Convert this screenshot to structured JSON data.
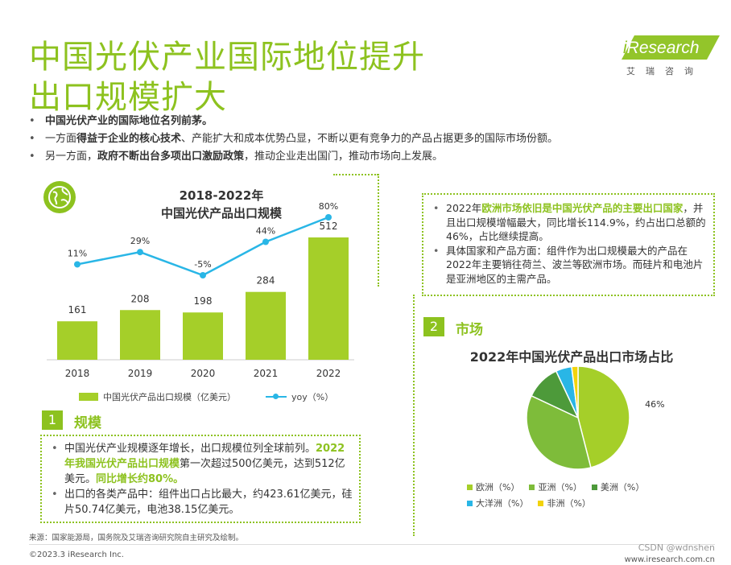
{
  "title": {
    "line1": "中国光伏产业国际地位提升",
    "line2": "出口规模扩大"
  },
  "logo": {
    "brand_i": "i",
    "brand_rest": "Research",
    "cn": "艾瑞咨询"
  },
  "colors": {
    "accent": "#8dc21f",
    "bar": "#a5cf29",
    "line": "#29b6e6"
  },
  "intro": [
    {
      "pre": "",
      "bold": "中国光伏产业的国际地位名列前茅。",
      "post": ""
    },
    {
      "pre": "一方面",
      "bold": "得益于企业的核心技术",
      "post": "、产能扩大和成本优势凸显，不断以更有竞争力的产品占据更多的国际市场份额。"
    },
    {
      "pre": "另一方面，",
      "bold": "政府不断出台多项出口激励政策",
      "post": "，推动企业走出国门，推动市场向上发展。"
    }
  ],
  "export_chart": {
    "title_line1": "2018-2022年",
    "title_line2": "中国光伏产品出口规模",
    "globe_icon": "globe-icon"
  },
  "chart_data": [
    {
      "type": "bar",
      "title": "2018-2022年中国光伏产品出口规模",
      "categories": [
        "2018",
        "2019",
        "2020",
        "2021",
        "2022"
      ],
      "series": [
        {
          "name": "中国光伏产品出口规模（亿美元）",
          "type": "bar",
          "values": [
            161,
            208,
            198,
            284,
            512
          ],
          "labels": [
            "161",
            "208",
            "198",
            "284",
            "512"
          ]
        },
        {
          "name": "yoy（%）",
          "type": "line",
          "values": [
            11,
            29,
            -5,
            44,
            80
          ],
          "labels": [
            "11%",
            "29%",
            "-5%",
            "44%",
            "80%"
          ]
        }
      ]
    },
    {
      "type": "pie",
      "title": "2022年中国光伏产品出口市场占比",
      "slices": [
        {
          "name": "欧洲（%）",
          "value": 46,
          "label": "46%",
          "color": "#a5cf29"
        },
        {
          "name": "亚洲（%）",
          "value": 36,
          "label": "",
          "color": "#7ebc3a"
        },
        {
          "name": "美洲（%）",
          "value": 11,
          "label": "",
          "color": "#4d9a3a"
        },
        {
          "name": "大洋洲（%）",
          "value": 5,
          "label": "",
          "color": "#29b6e6"
        },
        {
          "name": "非洲（%）",
          "value": 2,
          "label": "",
          "color": "#f2d30c"
        }
      ]
    }
  ],
  "legend": {
    "bar_label": "中国光伏产品出口规模（亿美元）",
    "line_label": "yoy（%）"
  },
  "section1": {
    "num": "1",
    "label": "规模"
  },
  "box1": {
    "b1_a": "中国光伏产业规模逐年增长，出口规模位列全球前列。",
    "b1_hl1": "2022年我国光伏产品出口规模",
    "b1_b": "第一次超过500亿美元，达到512亿美元。",
    "b1_hl2": "同比增长约80%。",
    "b2": "出口的各类产品中：组件出口占比最大，约423.61亿美元，硅片50.74亿美元，电池38.15亿美元。"
  },
  "box2": {
    "b1_a": "2022年",
    "b1_hl": "欧洲市场依旧是中国光伏产品的主要出口国家",
    "b1_b": "，并且出口规模增幅最大，同比增长114.9%，约占出口总额的46%，占比继续提高。",
    "b2": "具体国家和产品方面：组件作为出口规模最大的产品在2022年主要销往荷兰、波兰等欧洲市场。而硅片和电池片是亚洲地区的主需产品。"
  },
  "section2": {
    "num": "2",
    "label": "市场"
  },
  "pie": {
    "title": "2022年中国光伏产品出口市场占比"
  },
  "source": "来源：国家能源局，国务院及艾瑞咨询研究院自主研究及绘制。",
  "copyright": "©2023.3 iResearch Inc.",
  "website": "www.iresearch.com.cn",
  "watermark": "CSDN @wdnshen"
}
